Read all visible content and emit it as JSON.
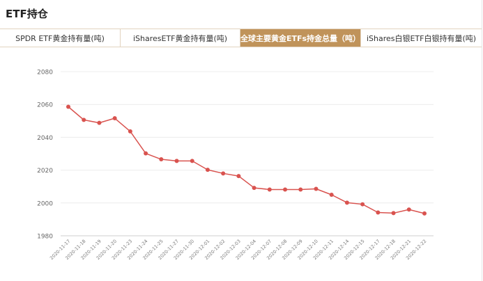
{
  "header": {
    "title": "ETF持仓"
  },
  "tabs": [
    {
      "label": "SPDR ETF黄金持有量(吨)",
      "active": false
    },
    {
      "label": "iSharesETF黄金持有量(吨)",
      "active": false
    },
    {
      "label": "全球主要黄金ETFs持金总量（吨）",
      "active": true
    },
    {
      "label": "iShares白银ETF白银持有量(吨)",
      "active": false
    }
  ],
  "colors": {
    "accent": "#c0935a",
    "line": "#d9534f",
    "grid": "#ececec"
  },
  "chart_data": {
    "type": "line",
    "title": "",
    "xlabel": "",
    "ylabel": "",
    "ylim": [
      1980,
      2080
    ],
    "yticks": [
      1980,
      2000,
      2020,
      2040,
      2060,
      2080
    ],
    "grid": true,
    "categories": [
      "2020-11-17",
      "2020-11-18",
      "2020-11-19",
      "2020-11-20",
      "2020-11-23",
      "2020-11-24",
      "2020-11-25",
      "2020-11-27",
      "2020-11-30",
      "2020-12-01",
      "2020-12-02",
      "2020-12-03",
      "2020-12-04",
      "2020-12-07",
      "2020-12-08",
      "2020-12-09",
      "2020-12-10",
      "2020-12-11",
      "2020-12-14",
      "2020-12-15",
      "2020-12-17",
      "2020-12-18",
      "2020-12-21",
      "2020-12-22"
    ],
    "series": [
      {
        "values": [
          2058.6,
          2050.6,
          2048.8,
          2051.6,
          2043.6,
          2030.2,
          2026.6,
          2025.6,
          2025.6,
          2020.2,
          2018.0,
          2016.4,
          2009.2,
          2008.2,
          2008.2,
          2008.2,
          2008.6,
          2005.0,
          2000.2,
          1999.2,
          1994.2,
          1993.8,
          1996.0,
          1993.6
        ]
      }
    ]
  }
}
